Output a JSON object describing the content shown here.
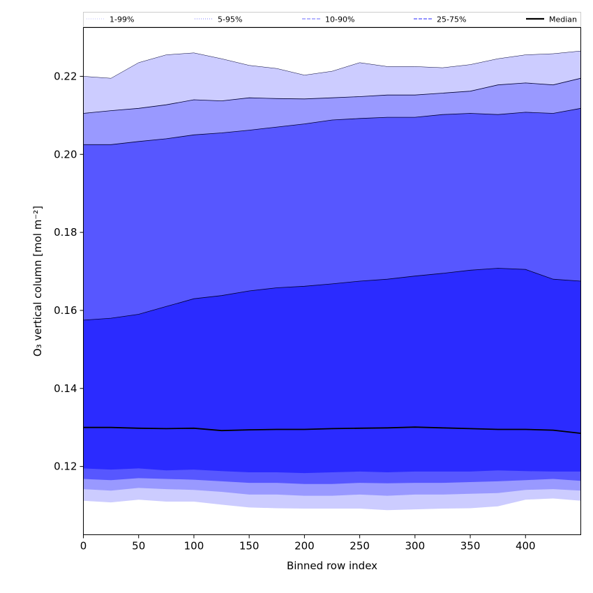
{
  "chart_data": {
    "type": "area",
    "xlabel": "Binned row index",
    "ylabel": "O₃ vertical column [mol m⁻²]",
    "xlim": [
      0,
      450
    ],
    "ylim": [
      0.1025,
      0.2325
    ],
    "x_ticks": [
      "0",
      "50",
      "100",
      "150",
      "200",
      "250",
      "300",
      "350",
      "400"
    ],
    "y_ticks": [
      "0.12",
      "0.14",
      "0.16",
      "0.18",
      "0.20",
      "0.22"
    ],
    "grid": false,
    "legend_position": "top (horizontal strip)",
    "x": [
      0,
      25,
      50,
      75,
      100,
      125,
      150,
      175,
      200,
      225,
      250,
      275,
      300,
      325,
      350,
      375,
      400,
      425,
      450
    ],
    "median": [
      0.13,
      0.13,
      0.1298,
      0.1297,
      0.1298,
      0.1292,
      0.1294,
      0.1295,
      0.1295,
      0.1297,
      0.1298,
      0.1299,
      0.1301,
      0.1299,
      0.1297,
      0.1295,
      0.1295,
      0.1293,
      0.1285
    ],
    "series": [
      {
        "name": "1-99%",
        "color": "#ccccff",
        "lower": [
          0.1112,
          0.1108,
          0.1115,
          0.111,
          0.111,
          0.1102,
          0.1095,
          0.1093,
          0.1092,
          0.1092,
          0.1092,
          0.1088,
          0.109,
          0.1092,
          0.1093,
          0.1098,
          0.1115,
          0.1118,
          0.1112
        ],
        "upper": [
          0.22,
          0.2195,
          0.2235,
          0.2255,
          0.226,
          0.2245,
          0.2228,
          0.222,
          0.2203,
          0.2213,
          0.2235,
          0.2225,
          0.2225,
          0.2222,
          0.223,
          0.2245,
          0.2255,
          0.2258,
          0.2265
        ]
      },
      {
        "name": "5-95%",
        "color": "#9999ff",
        "lower": [
          0.1142,
          0.1138,
          0.1145,
          0.1142,
          0.114,
          0.1135,
          0.1128,
          0.1128,
          0.1125,
          0.1125,
          0.1128,
          0.1125,
          0.1128,
          0.1128,
          0.113,
          0.1132,
          0.114,
          0.1142,
          0.1138
        ],
        "upper": [
          0.2105,
          0.2112,
          0.2118,
          0.2127,
          0.214,
          0.2137,
          0.2145,
          0.2143,
          0.2142,
          0.2145,
          0.2148,
          0.2152,
          0.2152,
          0.2157,
          0.2162,
          0.2178,
          0.2183,
          0.2178,
          0.2195
        ]
      },
      {
        "name": "10-90%",
        "color": "#5757ff",
        "lower": [
          0.1168,
          0.1165,
          0.117,
          0.1168,
          0.1166,
          0.1162,
          0.1158,
          0.1158,
          0.1155,
          0.1155,
          0.1158,
          0.1157,
          0.1158,
          0.1158,
          0.116,
          0.1162,
          0.1165,
          0.1168,
          0.1163
        ],
        "upper": [
          0.2025,
          0.2025,
          0.2033,
          0.204,
          0.205,
          0.2055,
          0.2062,
          0.207,
          0.2078,
          0.2088,
          0.2092,
          0.2095,
          0.2095,
          0.2102,
          0.2105,
          0.2102,
          0.2108,
          0.2105,
          0.2118
        ]
      },
      {
        "name": "25-75%",
        "color": "#2b2bff",
        "lower": [
          0.1195,
          0.1192,
          0.1195,
          0.119,
          0.1192,
          0.1188,
          0.1185,
          0.1185,
          0.1183,
          0.1185,
          0.1187,
          0.1185,
          0.1187,
          0.1187,
          0.1187,
          0.119,
          0.1188,
          0.1187,
          0.1187
        ],
        "upper": [
          0.1575,
          0.158,
          0.159,
          0.161,
          0.163,
          0.1638,
          0.165,
          0.1658,
          0.1662,
          0.1668,
          0.1675,
          0.168,
          0.1688,
          0.1695,
          0.1703,
          0.1708,
          0.1705,
          0.168,
          0.1675
        ]
      }
    ],
    "legend": [
      {
        "label": "1-99%",
        "color": "#ccccff",
        "style": "dotted"
      },
      {
        "label": "5-95%",
        "color": "#9999ff",
        "style": "dotted"
      },
      {
        "label": "10-90%",
        "color": "#8888ff",
        "style": "dashed"
      },
      {
        "label": "25-75%",
        "color": "#5050ff",
        "style": "dashed"
      },
      {
        "label": "Median",
        "color": "#000000",
        "style": "solid"
      }
    ]
  }
}
